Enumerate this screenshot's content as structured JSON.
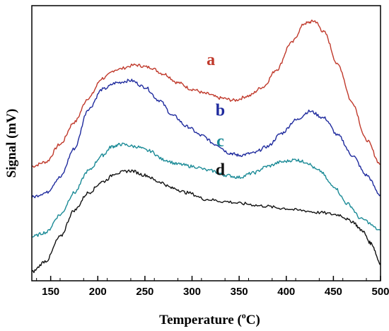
{
  "chart_data": {
    "type": "line",
    "xlabel": "Temperature",
    "xlabel_unit_pre": " (",
    "xlabel_unit_sup": "o",
    "xlabel_unit_post": "C)",
    "ylabel": "Signal (mV)",
    "xlim": [
      130,
      500
    ],
    "x_ticks": [
      150,
      200,
      250,
      300,
      350,
      400,
      450,
      500
    ],
    "y_tick_labels": false,
    "grid": false,
    "legend": "inline labels",
    "series": [
      {
        "name": "a",
        "color": "#c0392b",
        "label_at": [
          320,
          78
        ],
        "points": [
          [
            130,
            32
          ],
          [
            145,
            34
          ],
          [
            160,
            42
          ],
          [
            175,
            52
          ],
          [
            190,
            63
          ],
          [
            205,
            72
          ],
          [
            220,
            76
          ],
          [
            240,
            78
          ],
          [
            255,
            77
          ],
          [
            270,
            74
          ],
          [
            285,
            70
          ],
          [
            300,
            67
          ],
          [
            315,
            65
          ],
          [
            330,
            63
          ],
          [
            345,
            62
          ],
          [
            360,
            64
          ],
          [
            375,
            68
          ],
          [
            390,
            76
          ],
          [
            405,
            88
          ],
          [
            420,
            97
          ],
          [
            430,
            98
          ],
          [
            440,
            93
          ],
          [
            455,
            78
          ],
          [
            470,
            61
          ],
          [
            485,
            44
          ],
          [
            500,
            33
          ]
        ]
      },
      {
        "name": "b",
        "color": "#1f2b9e",
        "label_at": [
          330,
          55
        ],
        "points": [
          [
            130,
            18
          ],
          [
            145,
            20
          ],
          [
            160,
            27
          ],
          [
            175,
            40
          ],
          [
            190,
            58
          ],
          [
            205,
            67
          ],
          [
            220,
            70
          ],
          [
            235,
            71
          ],
          [
            250,
            68
          ],
          [
            265,
            62
          ],
          [
            280,
            55
          ],
          [
            295,
            50
          ],
          [
            310,
            46
          ],
          [
            325,
            42
          ],
          [
            340,
            38
          ],
          [
            350,
            37
          ],
          [
            365,
            38
          ],
          [
            380,
            41
          ],
          [
            395,
            47
          ],
          [
            410,
            53
          ],
          [
            425,
            57
          ],
          [
            440,
            54
          ],
          [
            455,
            46
          ],
          [
            470,
            37
          ],
          [
            485,
            28
          ],
          [
            500,
            19
          ]
        ]
      },
      {
        "name": "c",
        "color": "#1a8a96",
        "label_at": [
          330,
          41
        ],
        "points": [
          [
            130,
            0
          ],
          [
            145,
            2
          ],
          [
            160,
            10
          ],
          [
            175,
            20
          ],
          [
            190,
            30
          ],
          [
            205,
            37
          ],
          [
            215,
            41
          ],
          [
            225,
            42
          ],
          [
            240,
            41
          ],
          [
            255,
            39
          ],
          [
            270,
            35
          ],
          [
            285,
            33
          ],
          [
            300,
            32
          ],
          [
            320,
            30
          ],
          [
            335,
            28
          ],
          [
            350,
            27
          ],
          [
            365,
            29
          ],
          [
            380,
            32
          ],
          [
            395,
            34
          ],
          [
            410,
            35
          ],
          [
            420,
            34
          ],
          [
            435,
            30
          ],
          [
            450,
            23
          ],
          [
            465,
            15
          ],
          [
            480,
            8
          ],
          [
            500,
            3
          ]
        ]
      },
      {
        "name": "d",
        "color": "#111111",
        "label_at": [
          330,
          28
        ],
        "points": [
          [
            130,
            -16
          ],
          [
            145,
            -11
          ],
          [
            160,
            0
          ],
          [
            175,
            12
          ],
          [
            190,
            20
          ],
          [
            205,
            25
          ],
          [
            220,
            29
          ],
          [
            235,
            30
          ],
          [
            250,
            28
          ],
          [
            265,
            25
          ],
          [
            280,
            22
          ],
          [
            295,
            20
          ],
          [
            315,
            17
          ],
          [
            335,
            16
          ],
          [
            355,
            15
          ],
          [
            375,
            14
          ],
          [
            395,
            13
          ],
          [
            415,
            12
          ],
          [
            435,
            11
          ],
          [
            455,
            10
          ],
          [
            470,
            7
          ],
          [
            480,
            3
          ],
          [
            490,
            -3
          ],
          [
            500,
            -12
          ]
        ]
      }
    ],
    "ylim": [
      -20,
      105
    ]
  }
}
